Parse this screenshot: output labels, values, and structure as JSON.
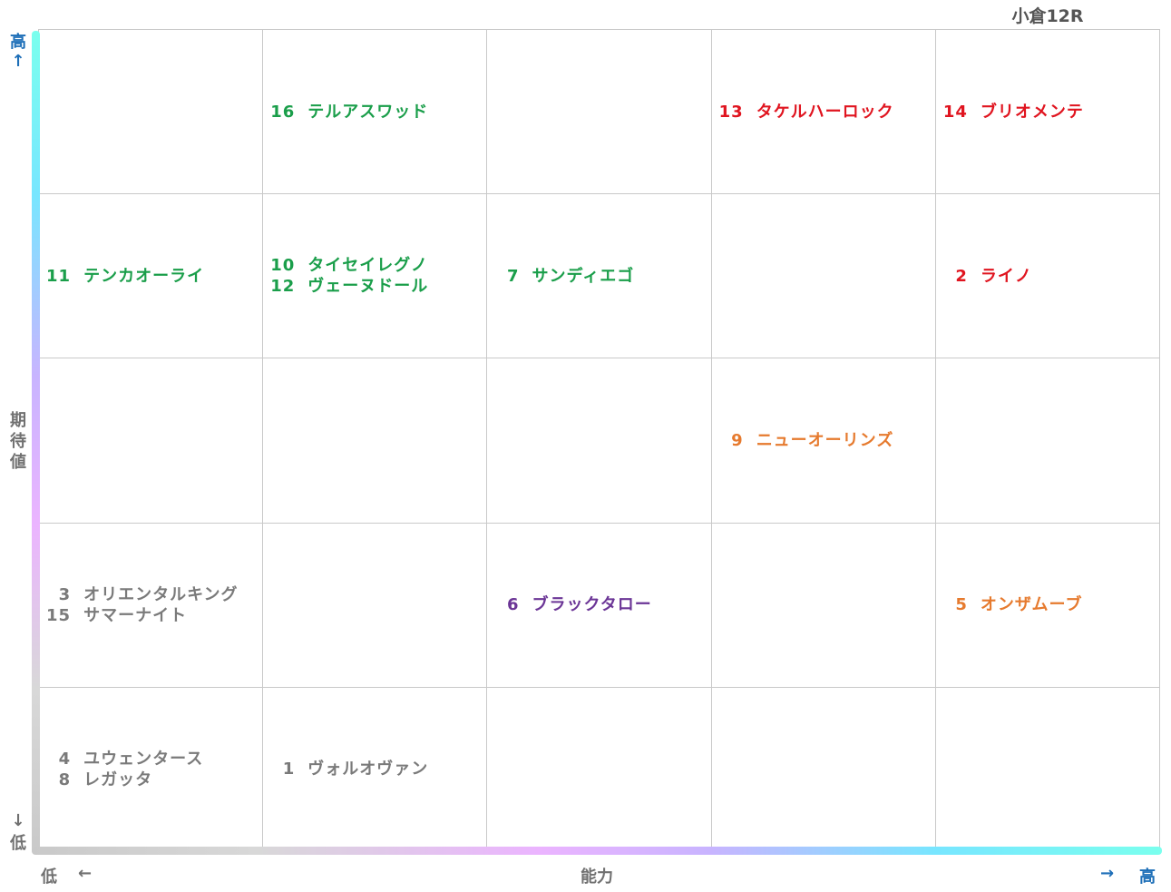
{
  "title": "小倉12R",
  "colors": {
    "green": "#1a9e4a",
    "red": "#e0141f",
    "orange": "#e67a2e",
    "purple": "#6b3596",
    "gray": "#7a7a7a",
    "axis_blue": "#1e6fb8"
  },
  "axes": {
    "y_label": "期待値",
    "y_high": "高",
    "y_high_arrow": "↑",
    "y_low": "低",
    "y_low_arrow": "↓",
    "x_label": "能力",
    "x_low": "低",
    "x_low_arrow": "←",
    "x_high": "高",
    "x_high_arrow": "→"
  },
  "chart_data": {
    "type": "table",
    "title": "小倉12R",
    "xlabel": "能力",
    "ylabel": "期待値",
    "columns": 5,
    "rows": 5,
    "cells": [
      {
        "row": 1,
        "col": 2,
        "entries": [
          {
            "num": "16",
            "name": "テルアスワッド",
            "color": "green"
          }
        ]
      },
      {
        "row": 1,
        "col": 4,
        "entries": [
          {
            "num": "13",
            "name": "タケルハーロック",
            "color": "red"
          }
        ]
      },
      {
        "row": 1,
        "col": 5,
        "entries": [
          {
            "num": "14",
            "name": "ブリオメンテ",
            "color": "red"
          }
        ]
      },
      {
        "row": 2,
        "col": 1,
        "entries": [
          {
            "num": "11",
            "name": "テンカオーライ",
            "color": "green"
          }
        ]
      },
      {
        "row": 2,
        "col": 2,
        "entries": [
          {
            "num": "10",
            "name": "タイセイレグノ",
            "color": "green"
          },
          {
            "num": "12",
            "name": "ヴェーヌドール",
            "color": "green"
          }
        ]
      },
      {
        "row": 2,
        "col": 3,
        "entries": [
          {
            "num": "7",
            "name": "サンディエゴ",
            "color": "green"
          }
        ]
      },
      {
        "row": 2,
        "col": 5,
        "entries": [
          {
            "num": "2",
            "name": "ライノ",
            "color": "red"
          }
        ]
      },
      {
        "row": 3,
        "col": 4,
        "entries": [
          {
            "num": "9",
            "name": "ニューオーリンズ",
            "color": "orange"
          }
        ]
      },
      {
        "row": 4,
        "col": 1,
        "entries": [
          {
            "num": "3",
            "name": "オリエンタルキング",
            "color": "gray"
          },
          {
            "num": "15",
            "name": "サマーナイト",
            "color": "gray"
          }
        ]
      },
      {
        "row": 4,
        "col": 3,
        "entries": [
          {
            "num": "6",
            "name": "ブラックタロー",
            "color": "purple"
          }
        ]
      },
      {
        "row": 4,
        "col": 5,
        "entries": [
          {
            "num": "5",
            "name": "オンザムーブ",
            "color": "orange"
          }
        ]
      },
      {
        "row": 5,
        "col": 1,
        "entries": [
          {
            "num": "4",
            "name": "ユウェンタース",
            "color": "gray"
          },
          {
            "num": "8",
            "name": "レガッタ",
            "color": "gray"
          }
        ]
      },
      {
        "row": 5,
        "col": 2,
        "entries": [
          {
            "num": "1",
            "name": "ヴォルオヴァン",
            "color": "gray"
          }
        ]
      }
    ]
  }
}
